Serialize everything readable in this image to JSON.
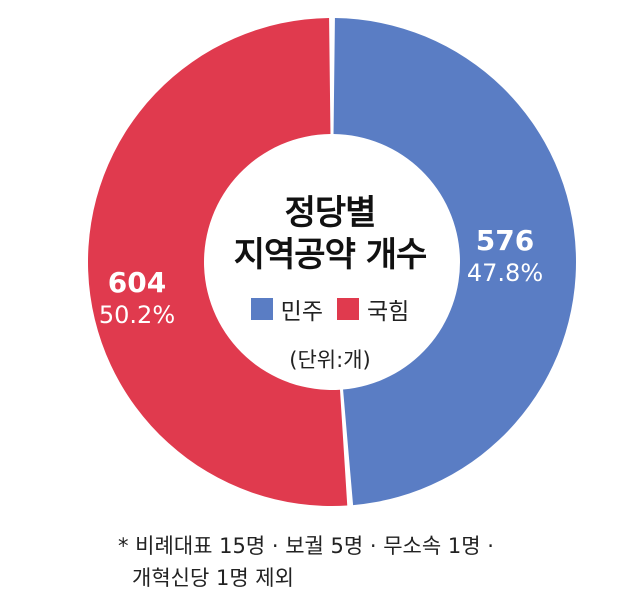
{
  "chart_data": {
    "type": "pie",
    "style": "donut",
    "title": "정당별\n지역공약 개수",
    "title_lines": [
      "정당별",
      "지역공약 개수"
    ],
    "unit_note": "(단위:개)",
    "slices": [
      {
        "name": "민주",
        "value": 576,
        "percent_label": "47.8%",
        "color": "#5a7dc4"
      },
      {
        "name": "국힘",
        "value": 604,
        "percent_label": "50.2%",
        "color": "#e03a4e"
      }
    ],
    "footnote_lines": [
      "* 비례대표 15명 · 보궐 5명 · 무소속 1명 ·",
      "개혁신당 1명 제외"
    ]
  }
}
